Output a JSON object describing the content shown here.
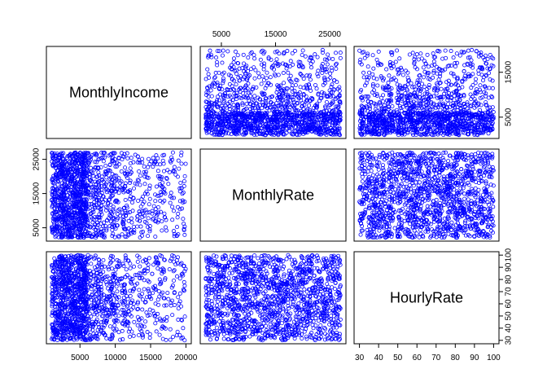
{
  "chart_data": {
    "type": "scatter",
    "kind": "scatter-matrix",
    "variables": [
      "MonthlyIncome",
      "MonthlyRate",
      "HourlyRate"
    ],
    "point_color": "#0000ff",
    "point_shape": "open-circle",
    "ranges": {
      "MonthlyIncome": [
        1009,
        19999
      ],
      "MonthlyRate": [
        2094,
        26999
      ],
      "HourlyRate": [
        30,
        100
      ]
    },
    "ticks": {
      "MonthlyIncome": [
        5000,
        10000,
        15000,
        20000
      ],
      "MonthlyRate": [
        5000,
        15000,
        25000
      ],
      "HourlyRate": [
        30,
        40,
        50,
        60,
        70,
        80,
        90,
        100
      ]
    },
    "tick_labels": {
      "MonthlyIncome": [
        "5000",
        "10000",
        "15000",
        "20000"
      ],
      "MonthlyRate": [
        "5000",
        "15000",
        "25000"
      ],
      "HourlyRate": [
        "30",
        "40",
        "50",
        "60",
        "70",
        "80",
        "90",
        "100"
      ],
      "MonthlyIncome_right": [
        "5000",
        "15000"
      ]
    },
    "ticks_extra": {
      "MonthlyIncome_right": [
        5000,
        15000
      ]
    },
    "grid": false,
    "legend": "none",
    "n_points": 1470
  }
}
